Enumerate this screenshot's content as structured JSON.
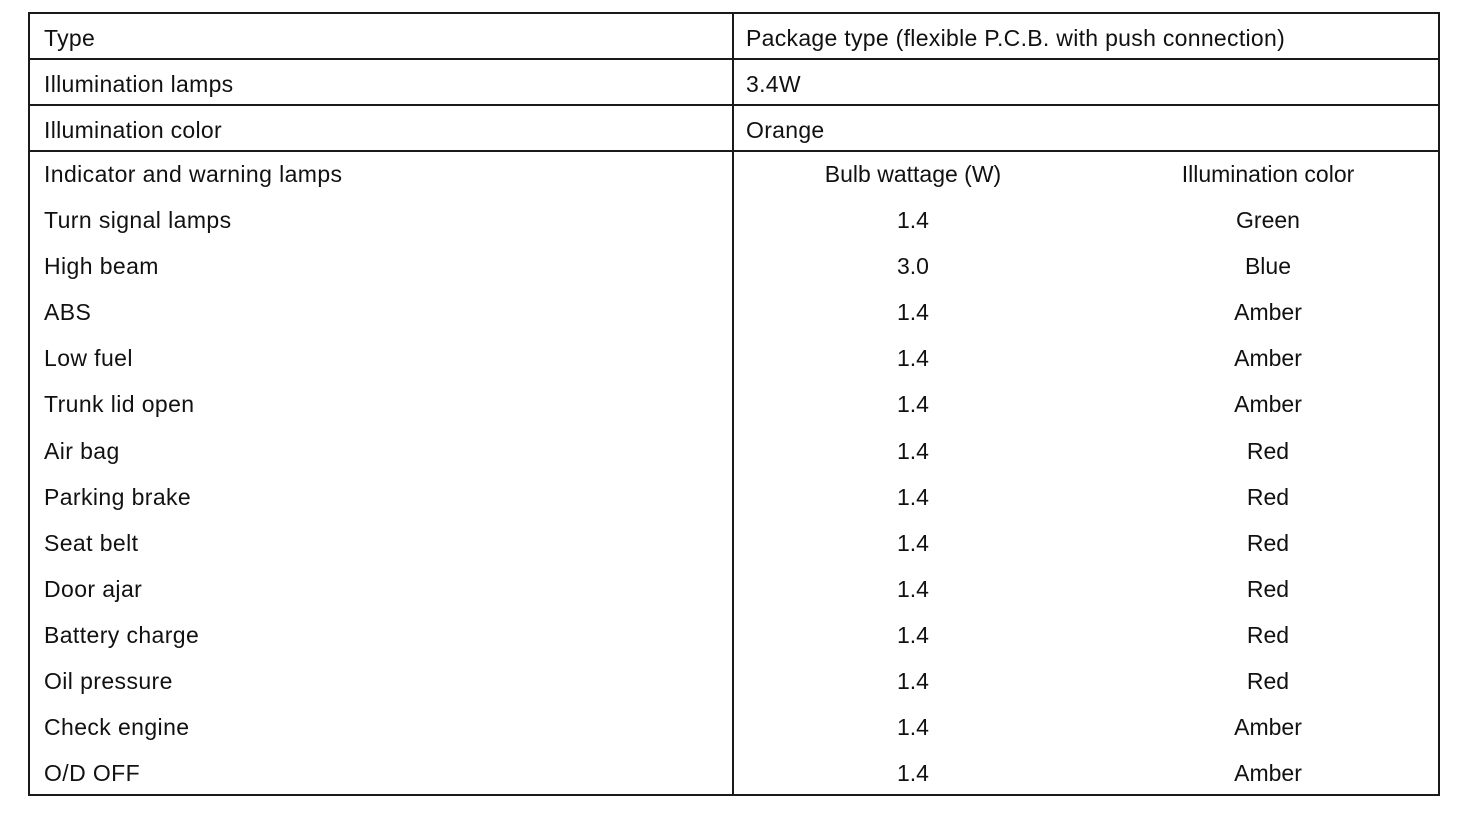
{
  "rows": {
    "type": {
      "label": "Type",
      "value": "Package type (flexible P.C.B. with push connection)"
    },
    "illumination_lamps": {
      "label": "Illumination lamps",
      "value": "3.4W"
    },
    "illumination_color": {
      "label": "Illumination color",
      "value": "Orange"
    }
  },
  "indicators": {
    "header": {
      "label": "Indicator and warning lamps",
      "wattage": "Bulb wattage (W)",
      "color": "Illumination color"
    },
    "items": [
      {
        "name": "Turn signal lamps",
        "wattage": "1.4",
        "color": "Green"
      },
      {
        "name": "High beam",
        "wattage": "3.0",
        "color": "Blue"
      },
      {
        "name": "ABS",
        "wattage": "1.4",
        "color": "Amber"
      },
      {
        "name": "Low fuel",
        "wattage": "1.4",
        "color": "Amber"
      },
      {
        "name": "Trunk lid open",
        "wattage": "1.4",
        "color": "Amber"
      },
      {
        "name": "Air bag",
        "wattage": "1.4",
        "color": "Red"
      },
      {
        "name": "Parking brake",
        "wattage": "1.4",
        "color": "Red"
      },
      {
        "name": "Seat belt",
        "wattage": "1.4",
        "color": "Red"
      },
      {
        "name": "Door ajar",
        "wattage": "1.4",
        "color": "Red"
      },
      {
        "name": "Battery charge",
        "wattage": "1.4",
        "color": "Red"
      },
      {
        "name": "Oil pressure",
        "wattage": "1.4",
        "color": "Red"
      },
      {
        "name": "Check engine",
        "wattage": "1.4",
        "color": "Amber"
      },
      {
        "name": "O/D OFF",
        "wattage": "1.4",
        "color": "Amber"
      }
    ]
  }
}
